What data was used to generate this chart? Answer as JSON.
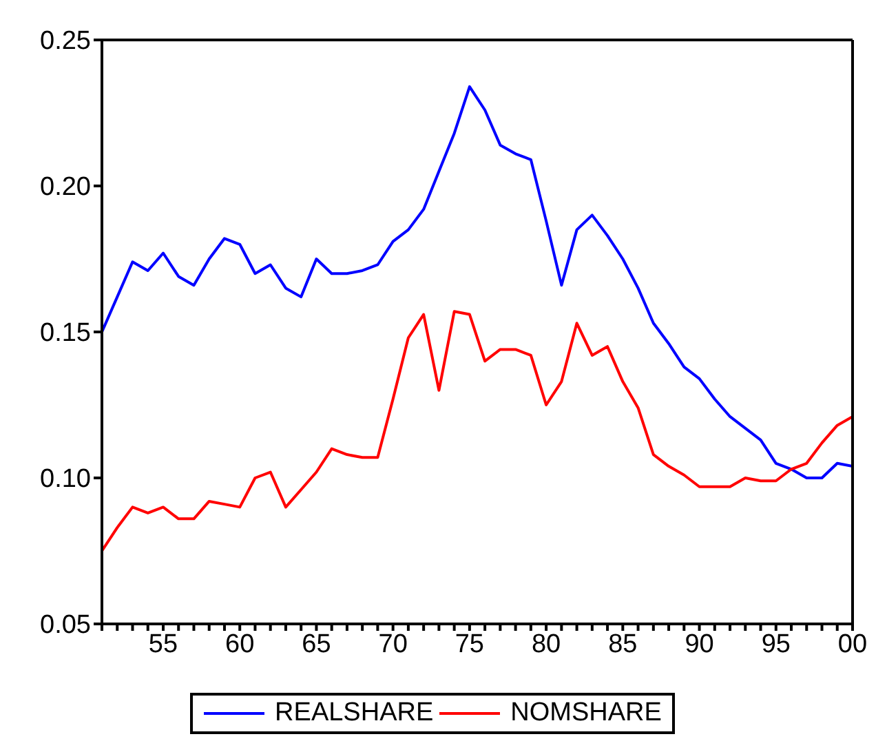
{
  "chart_data": {
    "type": "line",
    "x": [
      1951,
      1952,
      1953,
      1954,
      1955,
      1956,
      1957,
      1958,
      1959,
      1960,
      1961,
      1962,
      1963,
      1964,
      1965,
      1966,
      1967,
      1968,
      1969,
      1970,
      1971,
      1972,
      1973,
      1974,
      1975,
      1976,
      1977,
      1978,
      1979,
      1980,
      1981,
      1982,
      1983,
      1984,
      1985,
      1986,
      1987,
      1988,
      1989,
      1990,
      1991,
      1992,
      1993,
      1994,
      1995,
      1996,
      1997,
      1998,
      1999,
      2000
    ],
    "series": [
      {
        "name": "REALSHARE",
        "color": "#0000ff",
        "values": [
          0.15,
          0.162,
          0.174,
          0.171,
          0.177,
          0.169,
          0.166,
          0.175,
          0.182,
          0.18,
          0.17,
          0.173,
          0.165,
          0.162,
          0.175,
          0.17,
          0.17,
          0.171,
          0.173,
          0.181,
          0.185,
          0.192,
          0.205,
          0.218,
          0.234,
          0.226,
          0.214,
          0.211,
          0.209,
          0.188,
          0.166,
          0.185,
          0.19,
          0.183,
          0.175,
          0.165,
          0.153,
          0.146,
          0.138,
          0.134,
          0.127,
          0.121,
          0.117,
          0.113,
          0.105,
          0.103,
          0.1,
          0.1,
          0.105,
          0.104
        ]
      },
      {
        "name": "NOMSHARE",
        "color": "#ff0000",
        "values": [
          0.075,
          0.083,
          0.09,
          0.088,
          0.09,
          0.086,
          0.086,
          0.092,
          0.091,
          0.09,
          0.1,
          0.102,
          0.09,
          0.096,
          0.102,
          0.11,
          0.108,
          0.107,
          0.107,
          0.127,
          0.148,
          0.156,
          0.13,
          0.157,
          0.156,
          0.14,
          0.144,
          0.144,
          0.142,
          0.125,
          0.133,
          0.153,
          0.142,
          0.145,
          0.133,
          0.124,
          0.108,
          0.104,
          0.101,
          0.097,
          0.097,
          0.097,
          0.1,
          0.099,
          0.099,
          0.103,
          0.105,
          0.112,
          0.118,
          0.121
        ]
      }
    ],
    "xlim": [
      1951,
      2000
    ],
    "xticks": [
      {
        "value": 1951,
        "label": null
      },
      {
        "value": 1952,
        "label": null
      },
      {
        "value": 1953,
        "label": null
      },
      {
        "value": 1954,
        "label": null
      },
      {
        "value": 1955,
        "label": "55"
      },
      {
        "value": 1956,
        "label": null
      },
      {
        "value": 1957,
        "label": null
      },
      {
        "value": 1958,
        "label": null
      },
      {
        "value": 1959,
        "label": null
      },
      {
        "value": 1960,
        "label": "60"
      },
      {
        "value": 1961,
        "label": null
      },
      {
        "value": 1962,
        "label": null
      },
      {
        "value": 1963,
        "label": null
      },
      {
        "value": 1964,
        "label": null
      },
      {
        "value": 1965,
        "label": "65"
      },
      {
        "value": 1966,
        "label": null
      },
      {
        "value": 1967,
        "label": null
      },
      {
        "value": 1968,
        "label": null
      },
      {
        "value": 1969,
        "label": null
      },
      {
        "value": 1970,
        "label": "70"
      },
      {
        "value": 1971,
        "label": null
      },
      {
        "value": 1972,
        "label": null
      },
      {
        "value": 1973,
        "label": null
      },
      {
        "value": 1974,
        "label": null
      },
      {
        "value": 1975,
        "label": "75"
      },
      {
        "value": 1976,
        "label": null
      },
      {
        "value": 1977,
        "label": null
      },
      {
        "value": 1978,
        "label": null
      },
      {
        "value": 1979,
        "label": null
      },
      {
        "value": 1980,
        "label": "80"
      },
      {
        "value": 1981,
        "label": null
      },
      {
        "value": 1982,
        "label": null
      },
      {
        "value": 1983,
        "label": null
      },
      {
        "value": 1984,
        "label": null
      },
      {
        "value": 1985,
        "label": "85"
      },
      {
        "value": 1986,
        "label": null
      },
      {
        "value": 1987,
        "label": null
      },
      {
        "value": 1988,
        "label": null
      },
      {
        "value": 1989,
        "label": null
      },
      {
        "value": 1990,
        "label": "90"
      },
      {
        "value": 1991,
        "label": null
      },
      {
        "value": 1992,
        "label": null
      },
      {
        "value": 1993,
        "label": null
      },
      {
        "value": 1994,
        "label": null
      },
      {
        "value": 1995,
        "label": "95"
      },
      {
        "value": 1996,
        "label": null
      },
      {
        "value": 1997,
        "label": null
      },
      {
        "value": 1998,
        "label": null
      },
      {
        "value": 1999,
        "label": null
      },
      {
        "value": 2000,
        "label": "00"
      }
    ],
    "ylim": [
      0.05,
      0.25
    ],
    "yticks": [
      {
        "value": 0.05,
        "label": "0.05"
      },
      {
        "value": 0.1,
        "label": "0.10"
      },
      {
        "value": 0.15,
        "label": "0.15"
      },
      {
        "value": 0.2,
        "label": "0.20"
      },
      {
        "value": 0.25,
        "label": "0.25"
      }
    ],
    "legend": "bottom",
    "marker": "none",
    "line_style": "solid"
  }
}
